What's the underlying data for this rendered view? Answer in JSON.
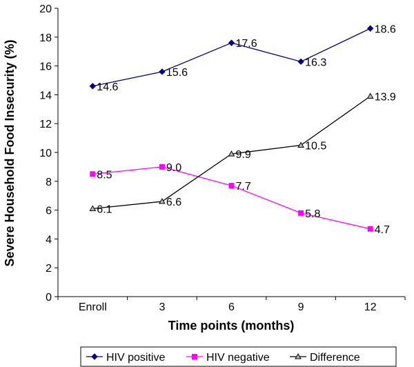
{
  "chart_data": {
    "type": "line",
    "categories": [
      "Enroll",
      "3",
      "6",
      "9",
      "12"
    ],
    "xlabel": "Time points (months)",
    "ylabel": "Severe Household Food Insecurity (%)",
    "ylim": [
      0,
      20
    ],
    "yticks": [
      0,
      2,
      4,
      6,
      8,
      10,
      12,
      14,
      16,
      18,
      20
    ],
    "grid": false,
    "legend_position": "bottom",
    "series": [
      {
        "name": "HIV positive",
        "values": [
          14.6,
          15.6,
          17.6,
          16.3,
          18.6
        ],
        "labels": [
          "14.6",
          "15.6",
          "17.6",
          "16.3",
          "18.6"
        ],
        "color": "#000080",
        "marker": "diamond"
      },
      {
        "name": "HIV negative",
        "values": [
          8.5,
          9.0,
          7.7,
          5.8,
          4.7
        ],
        "labels": [
          "8.5",
          "9.0",
          "7.7",
          "5.8",
          "4.7"
        ],
        "color": "#FF00FF",
        "marker": "square"
      },
      {
        "name": "Difference",
        "values": [
          6.1,
          6.6,
          9.9,
          10.5,
          13.9
        ],
        "labels": [
          "6.1",
          "6.6",
          "9.9",
          "10.5",
          "13.9"
        ],
        "color": "#000000",
        "marker": "triangle"
      }
    ]
  }
}
